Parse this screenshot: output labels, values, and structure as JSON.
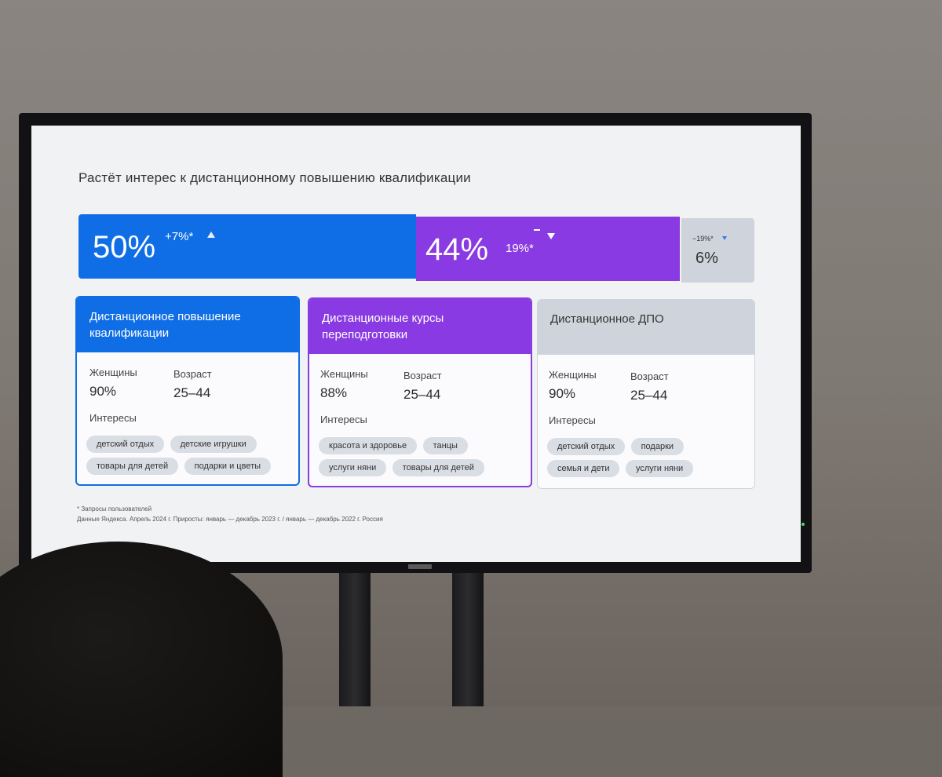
{
  "slide": {
    "title": "Растёт интерес к дистанционному повышению квалификации",
    "bars": [
      {
        "pct": "50%",
        "delta": "+7%*",
        "color": "#0f6ee6",
        "share": 0.5
      },
      {
        "pct": "44%",
        "delta": "19%*",
        "color": "#8a3ae2",
        "share": 0.44
      },
      {
        "pct": "6%",
        "delta": "−19%*",
        "color": "#cfd4dc",
        "share": 0.06
      }
    ],
    "cards": [
      {
        "title": "Дистанционное повышение квалификации",
        "header_color": "#0f6ee6",
        "women_label": "Женщины",
        "women_value": "90%",
        "age_label": "Возраст",
        "age_value": "25–44",
        "interests_label": "Интересы",
        "tags": [
          "детский отдых",
          "детские игрушки",
          "товары для детей",
          "подарки и цветы"
        ]
      },
      {
        "title": "Дистанционные курсы переподготовки",
        "header_color": "#8a3ae2",
        "women_label": "Женщины",
        "women_value": "88%",
        "age_label": "Возраст",
        "age_value": "25–44",
        "interests_label": "Интересы",
        "tags": [
          "красота и здоровье",
          "танцы",
          "услуги няни",
          "товары для детей"
        ]
      },
      {
        "title": "Дистанционное ДПО",
        "header_color": "#cfd4dc",
        "women_label": "Женщины",
        "women_value": "90%",
        "age_label": "Возраст",
        "age_value": "25–44",
        "interests_label": "Интересы",
        "tags": [
          "детский отдых",
          "подарки",
          "семья и дети",
          "услуги няни"
        ]
      }
    ],
    "footnote_1": "* Запросы пользователей",
    "footnote_2": "Данные Яндекса. Апрель 2024 г. Приросты: январь — декабрь 2023 г. / январь — декабрь 2022 г. Россия"
  }
}
